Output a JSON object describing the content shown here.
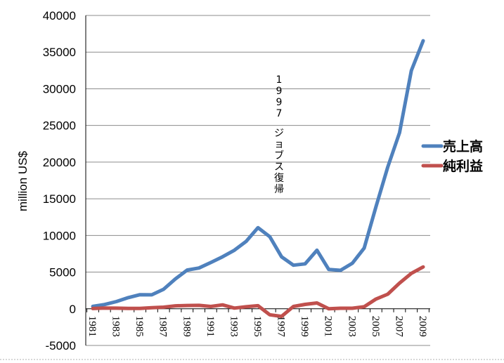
{
  "chart_data": {
    "type": "line",
    "title": "",
    "xlabel": "",
    "ylabel": "million US$",
    "ylim": [
      -5000,
      40000
    ],
    "yticks": [
      -5000,
      0,
      5000,
      10000,
      15000,
      20000,
      25000,
      30000,
      35000,
      40000
    ],
    "x": [
      1981,
      1982,
      1983,
      1984,
      1985,
      1986,
      1987,
      1988,
      1989,
      1990,
      1991,
      1992,
      1993,
      1994,
      1995,
      1996,
      1997,
      1998,
      1999,
      2000,
      2001,
      2002,
      2003,
      2004,
      2005,
      2006,
      2007,
      2008,
      2009
    ],
    "xtick_labels": [
      "1981",
      "1983",
      "1985",
      "1987",
      "1989",
      "1991",
      "1993",
      "1995",
      "1997",
      "1999",
      "2001",
      "2003",
      "2005",
      "2007",
      "2009"
    ],
    "grid": true,
    "legend_position": "right",
    "series": [
      {
        "name": "売上高",
        "color": "#4f81bd",
        "values": [
          330,
          580,
          980,
          1520,
          1920,
          1900,
          2660,
          4070,
          5280,
          5560,
          6310,
          7090,
          7980,
          9190,
          11060,
          9830,
          7080,
          5940,
          6130,
          7980,
          5360,
          5240,
          6210,
          8280,
          13930,
          19320,
          24010,
          32480,
          36540
        ]
      },
      {
        "name": "純利益",
        "color": "#c0504d",
        "values": [
          40,
          90,
          80,
          60,
          60,
          150,
          220,
          400,
          450,
          470,
          310,
          530,
          90,
          280,
          420,
          -820,
          -1040,
          310,
          600,
          790,
          0,
          70,
          70,
          280,
          1330,
          1990,
          3500,
          4830,
          5700
        ]
      }
    ],
    "annotations": [
      {
        "text": [
          "1",
          "9",
          "9",
          "7",
          "",
          "ジ",
          "ョ",
          "ブ",
          "ス",
          "復",
          "帰"
        ],
        "x": 1997
      }
    ]
  }
}
